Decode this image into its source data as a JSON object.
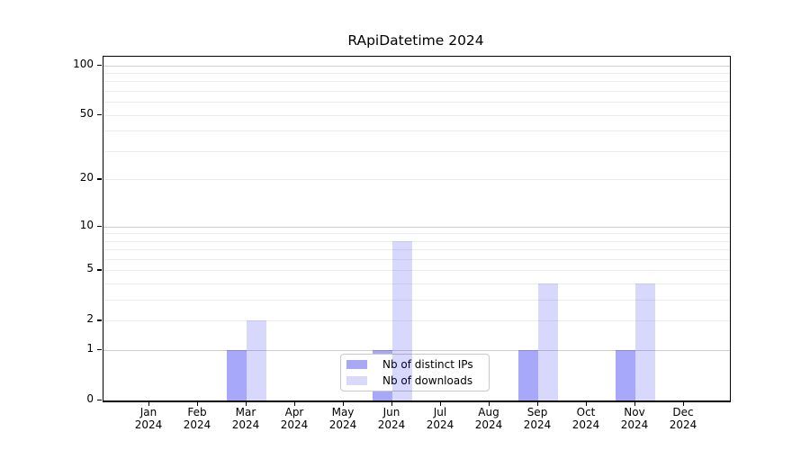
{
  "chart_data": {
    "type": "bar",
    "title": "RApiDatetime 2024",
    "categories": [
      "Jan",
      "Feb",
      "Mar",
      "Apr",
      "May",
      "Jun",
      "Jul",
      "Aug",
      "Sep",
      "Oct",
      "Nov",
      "Dec"
    ],
    "year_label": "2024",
    "series": [
      {
        "name": "Nb of distinct IPs",
        "swatch_color": "#a8a8f6",
        "fill": "rgba(0,0,240,0.34)",
        "values": [
          0,
          0,
          1,
          0,
          0,
          1,
          0,
          0,
          1,
          0,
          1,
          0
        ]
      },
      {
        "name": "Nb of downloads",
        "swatch_color": "#d9d9fb",
        "fill": "rgba(10,10,245,0.16)",
        "values": [
          0,
          0,
          2,
          0,
          0,
          8,
          0,
          0,
          4,
          0,
          4,
          0
        ]
      }
    ],
    "y_scale": "log1p",
    "ylim": [
      0,
      112
    ],
    "y_ticks": [
      0,
      1,
      2,
      5,
      10,
      20,
      50,
      100
    ],
    "grid": {
      "minor_values": [
        2,
        3,
        4,
        5,
        6,
        7,
        8,
        9,
        20,
        30,
        40,
        50,
        60,
        70,
        80,
        90
      ],
      "major_values": [
        1,
        10,
        100
      ],
      "minor_color": "#ececec",
      "major_color": "#cfcfcf"
    },
    "legend_position": "inside-bottom-center",
    "axis_color": "#000000",
    "background": "#ffffff"
  }
}
